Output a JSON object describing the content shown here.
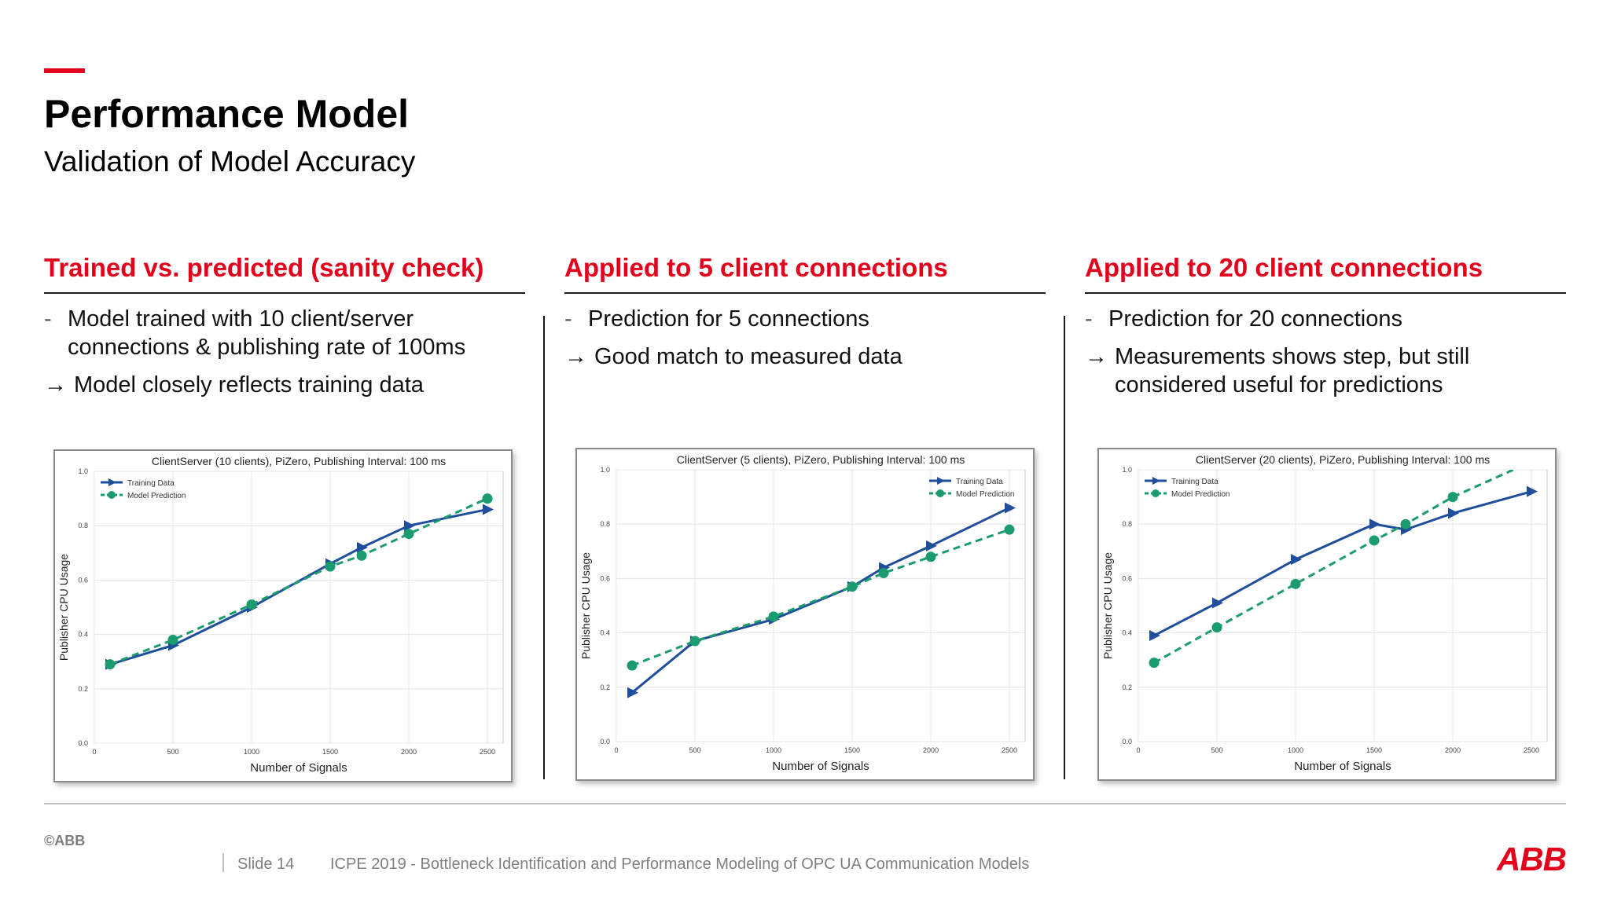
{
  "slide": {
    "title": "Performance Model",
    "subtitle": "Validation of Model Accuracy"
  },
  "columns": [
    {
      "heading": "Trained vs. predicted (sanity check)",
      "lines": [
        {
          "marker": "-",
          "text": "Model trained with 10 client/server connections & publishing rate of 100ms"
        },
        {
          "marker": "→",
          "text": "Model closely reflects training data"
        }
      ]
    },
    {
      "heading": "Applied to 5 client connections",
      "lines": [
        {
          "marker": "-",
          "text": "Prediction for 5 connections"
        },
        {
          "marker": "→",
          "text": "Good match to measured data"
        }
      ]
    },
    {
      "heading": "Applied to 20 client connections",
      "lines": [
        {
          "marker": "-",
          "text": "Prediction for 20 connections"
        },
        {
          "marker": "→",
          "text": "Measurements shows step, but still considered useful for predictions"
        }
      ]
    }
  ],
  "chart_data": [
    {
      "type": "line",
      "title": "ClientServer (10 clients), PiZero, Publishing Interval: 100 ms",
      "xlabel": "Number of Signals",
      "ylabel": "Publisher CPU Usage",
      "xlim": [
        0,
        2600
      ],
      "ylim": [
        0,
        1.0
      ],
      "xticks": [
        0,
        500,
        1000,
        1500,
        2000,
        2500
      ],
      "yticks": [
        0.0,
        0.2,
        0.4,
        0.6,
        0.8,
        1.0
      ],
      "grid": true,
      "legend_position": "top-left",
      "series": [
        {
          "name": "Training Data",
          "color": "#1f4e9c",
          "marker": "triangle",
          "style": "solid",
          "x": [
            100,
            500,
            1000,
            1500,
            1700,
            2000,
            2500
          ],
          "y": [
            0.29,
            0.36,
            0.5,
            0.66,
            0.72,
            0.8,
            0.86
          ]
        },
        {
          "name": "Model Prediction",
          "color": "#1a9c6e",
          "marker": "circle",
          "style": "dashed",
          "x": [
            100,
            500,
            1000,
            1500,
            1700,
            2000,
            2500
          ],
          "y": [
            0.29,
            0.38,
            0.51,
            0.65,
            0.69,
            0.77,
            0.9
          ]
        }
      ]
    },
    {
      "type": "line",
      "title": "ClientServer (5 clients), PiZero, Publishing Interval: 100 ms",
      "xlabel": "Number of Signals",
      "ylabel": "Publisher CPU Usage",
      "xlim": [
        0,
        2600
      ],
      "ylim": [
        0,
        1.0
      ],
      "xticks": [
        0,
        500,
        1000,
        1500,
        2000,
        2500
      ],
      "yticks": [
        0.0,
        0.2,
        0.4,
        0.6,
        0.8,
        1.0
      ],
      "grid": true,
      "legend_position": "top-right",
      "series": [
        {
          "name": "Training Data",
          "color": "#1f4e9c",
          "marker": "triangle",
          "style": "solid",
          "x": [
            100,
            500,
            1000,
            1500,
            1700,
            2000,
            2500
          ],
          "y": [
            0.18,
            0.37,
            0.45,
            0.57,
            0.64,
            0.72,
            0.86
          ]
        },
        {
          "name": "Model Prediction",
          "color": "#1a9c6e",
          "marker": "circle",
          "style": "dashed",
          "x": [
            100,
            500,
            1000,
            1500,
            1700,
            2000,
            2500
          ],
          "y": [
            0.28,
            0.37,
            0.46,
            0.57,
            0.62,
            0.68,
            0.78
          ]
        }
      ]
    },
    {
      "type": "line",
      "title": "ClientServer (20 clients), PiZero, Publishing Interval: 100 ms",
      "xlabel": "Number of Signals",
      "ylabel": "Publisher CPU Usage",
      "xlim": [
        0,
        2600
      ],
      "ylim": [
        0,
        1.0
      ],
      "xticks": [
        0,
        500,
        1000,
        1500,
        2000,
        2500
      ],
      "yticks": [
        0.0,
        0.2,
        0.4,
        0.6,
        0.8,
        1.0
      ],
      "grid": true,
      "legend_position": "top-left",
      "series": [
        {
          "name": "Training Data",
          "color": "#1f4e9c",
          "marker": "triangle",
          "style": "solid",
          "x": [
            100,
            500,
            1000,
            1500,
            1700,
            2000,
            2500
          ],
          "y": [
            0.39,
            0.51,
            0.67,
            0.8,
            0.78,
            0.84,
            0.92
          ]
        },
        {
          "name": "Model Prediction",
          "color": "#1a9c6e",
          "marker": "circle",
          "style": "dashed",
          "x": [
            100,
            500,
            1000,
            1500,
            1700,
            2000,
            2500
          ],
          "y": [
            0.29,
            0.42,
            0.58,
            0.74,
            0.8,
            0.9,
            1.03
          ]
        }
      ]
    }
  ],
  "footer": {
    "copyright": "©ABB",
    "slide": "Slide 14",
    "text": "ICPE 2019 - Bottleneck Identification and Performance Modeling of OPC UA Communication Models",
    "logo": "ABB",
    "logo_color": "#e2001a"
  }
}
